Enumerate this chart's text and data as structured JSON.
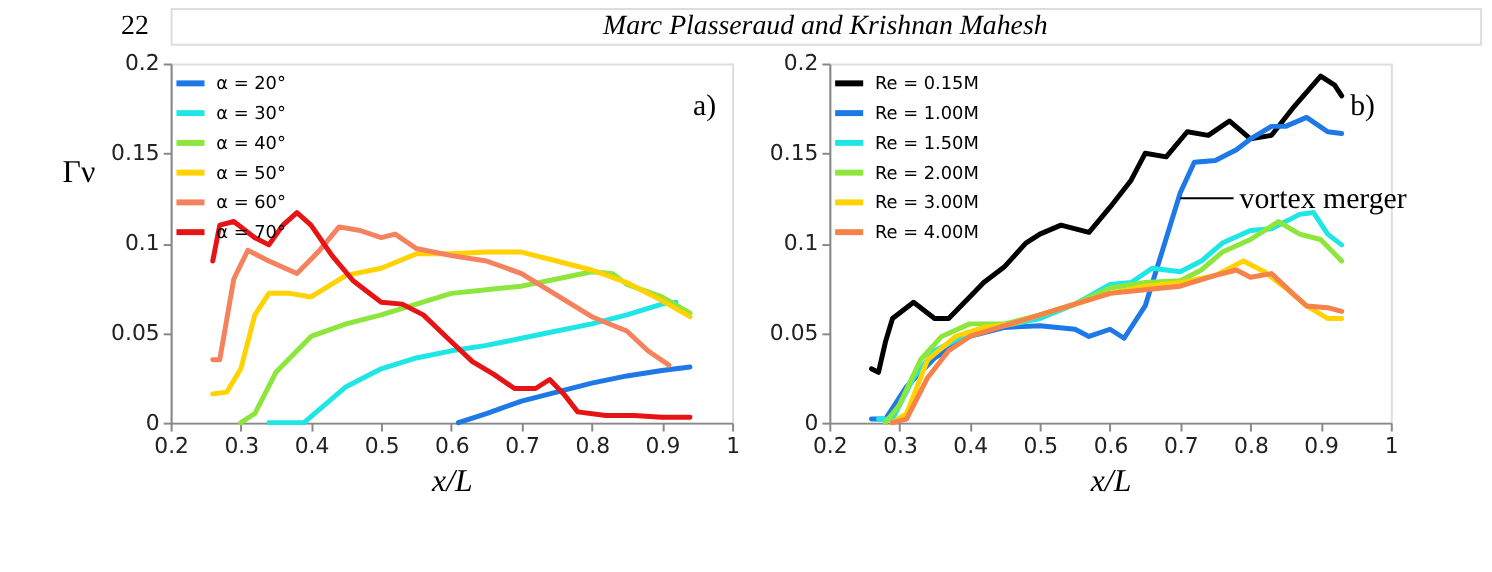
{
  "chart_data": [
    {
      "type": "line",
      "xlabel": "x/L",
      "ylabel": "Γν",
      "xlim": [
        0.2,
        1
      ],
      "ylim": [
        0,
        0.2
      ],
      "xticks": [
        0.2,
        0.3,
        0.4,
        0.5,
        0.6,
        0.7,
        0.8,
        0.9,
        1
      ],
      "yticks": [
        0,
        0.05,
        0.1,
        0.15,
        0.2
      ],
      "grid": false,
      "legend": "top left",
      "marker": "none",
      "line_style": "solid",
      "annotations": [
        "22",
        "Marc Plasseraud and Krishnan Mahesh",
        "a)"
      ],
      "series": [
        {
          "name": "α = 20°",
          "color": "#1e78e6",
          "x": [
            0.61,
            0.65,
            0.7,
            0.75,
            0.8,
            0.85,
            0.9,
            0.94
          ],
          "values": [
            0,
            0.005,
            0.012,
            0.017,
            0.022,
            0.026,
            0.029,
            0.031
          ]
        },
        {
          "name": "α = 30°",
          "color": "#1ee6e6",
          "x": [
            0.34,
            0.39,
            0.42,
            0.45,
            0.5,
            0.55,
            0.6,
            0.65,
            0.7,
            0.75,
            0.8,
            0.85,
            0.9,
            0.92
          ],
          "values": [
            0,
            0,
            0.01,
            0.02,
            0.03,
            0.036,
            0.04,
            0.043,
            0.047,
            0.051,
            0.055,
            0.06,
            0.066,
            0.067
          ]
        },
        {
          "name": "α = 40°",
          "color": "#8ce63c",
          "x": [
            0.3,
            0.32,
            0.35,
            0.4,
            0.45,
            0.5,
            0.55,
            0.6,
            0.65,
            0.7,
            0.75,
            0.8,
            0.83,
            0.85,
            0.9,
            0.94
          ],
          "values": [
            0,
            0.005,
            0.028,
            0.048,
            0.055,
            0.06,
            0.066,
            0.072,
            0.074,
            0.076,
            0.08,
            0.084,
            0.083,
            0.077,
            0.07,
            0.061
          ]
        },
        {
          "name": "α = 50°",
          "color": "#ffd200",
          "x": [
            0.26,
            0.28,
            0.3,
            0.32,
            0.34,
            0.37,
            0.4,
            0.45,
            0.5,
            0.55,
            0.6,
            0.65,
            0.7,
            0.75,
            0.8,
            0.85,
            0.9,
            0.94
          ],
          "values": [
            0.016,
            0.017,
            0.03,
            0.06,
            0.072,
            0.072,
            0.07,
            0.082,
            0.086,
            0.094,
            0.094,
            0.095,
            0.095,
            0.09,
            0.085,
            0.078,
            0.068,
            0.059
          ]
        },
        {
          "name": "α = 60°",
          "color": "#f5825f",
          "x": [
            0.26,
            0.27,
            0.29,
            0.31,
            0.34,
            0.38,
            0.41,
            0.44,
            0.47,
            0.5,
            0.52,
            0.55,
            0.6,
            0.65,
            0.7,
            0.75,
            0.8,
            0.85,
            0.88,
            0.91
          ],
          "values": [
            0.035,
            0.035,
            0.08,
            0.096,
            0.09,
            0.083,
            0.095,
            0.109,
            0.107,
            0.103,
            0.105,
            0.097,
            0.093,
            0.09,
            0.083,
            0.071,
            0.059,
            0.051,
            0.04,
            0.032
          ]
        },
        {
          "name": "α = 70°",
          "color": "#e61414",
          "x": [
            0.26,
            0.27,
            0.29,
            0.32,
            0.34,
            0.36,
            0.38,
            0.4,
            0.43,
            0.46,
            0.5,
            0.53,
            0.56,
            0.6,
            0.63,
            0.66,
            0.69,
            0.72,
            0.74,
            0.76,
            0.78,
            0.82,
            0.86,
            0.9,
            0.94
          ],
          "values": [
            0.09,
            0.11,
            0.112,
            0.103,
            0.099,
            0.11,
            0.117,
            0.11,
            0.093,
            0.079,
            0.067,
            0.066,
            0.06,
            0.045,
            0.034,
            0.027,
            0.019,
            0.019,
            0.024,
            0.016,
            0.006,
            0.004,
            0.004,
            0.003,
            0.003
          ]
        }
      ]
    },
    {
      "type": "line",
      "xlabel": "x/L",
      "xlim": [
        0.2,
        1
      ],
      "ylim": [
        0,
        0.2
      ],
      "xticks": [
        0.2,
        0.3,
        0.4,
        0.5,
        0.6,
        0.7,
        0.8,
        0.9,
        1
      ],
      "yticks": [
        0,
        0.05,
        0.1,
        0.15,
        0.2
      ],
      "grid": false,
      "legend": "top left",
      "marker": "none",
      "line_style": "solid",
      "annotations": [
        "b)",
        {
          "text": "vortex merger",
          "x": 0.7,
          "y": 0.125
        }
      ],
      "series": [
        {
          "name": "Re = 0.15M",
          "color": "#000000",
          "x": [
            0.26,
            0.27,
            0.28,
            0.29,
            0.32,
            0.35,
            0.37,
            0.4,
            0.42,
            0.45,
            0.48,
            0.5,
            0.53,
            0.57,
            0.6,
            0.63,
            0.65,
            0.68,
            0.71,
            0.74,
            0.77,
            0.8,
            0.83,
            0.86,
            0.9,
            0.92,
            0.93
          ],
          "values": [
            0.03,
            0.028,
            0.045,
            0.058,
            0.067,
            0.058,
            0.058,
            0.07,
            0.078,
            0.087,
            0.1,
            0.105,
            0.11,
            0.106,
            0.12,
            0.135,
            0.15,
            0.148,
            0.162,
            0.16,
            0.168,
            0.158,
            0.16,
            0.175,
            0.193,
            0.188,
            0.182
          ]
        },
        {
          "name": "Re = 1.00M",
          "color": "#1e78e6",
          "x": [
            0.26,
            0.28,
            0.31,
            0.35,
            0.4,
            0.45,
            0.5,
            0.55,
            0.57,
            0.6,
            0.62,
            0.65,
            0.67,
            0.7,
            0.72,
            0.75,
            0.78,
            0.8,
            0.83,
            0.85,
            0.88,
            0.91,
            0.93
          ],
          "values": [
            0.002,
            0.002,
            0.02,
            0.036,
            0.048,
            0.053,
            0.054,
            0.052,
            0.048,
            0.052,
            0.047,
            0.065,
            0.09,
            0.128,
            0.145,
            0.146,
            0.152,
            0.158,
            0.165,
            0.165,
            0.17,
            0.162,
            0.161
          ]
        },
        {
          "name": "Re = 1.50M",
          "color": "#1ee6e6",
          "x": [
            0.27,
            0.29,
            0.32,
            0.35,
            0.4,
            0.45,
            0.5,
            0.55,
            0.6,
            0.63,
            0.66,
            0.7,
            0.73,
            0.76,
            0.8,
            0.83,
            0.87,
            0.89,
            0.91,
            0.93
          ],
          "values": [
            0.002,
            0.002,
            0.025,
            0.04,
            0.05,
            0.054,
            0.058,
            0.066,
            0.077,
            0.078,
            0.086,
            0.084,
            0.09,
            0.1,
            0.107,
            0.108,
            0.116,
            0.117,
            0.105,
            0.099
          ]
        },
        {
          "name": "Re = 2.00M",
          "color": "#8ce63c",
          "x": [
            0.28,
            0.3,
            0.33,
            0.36,
            0.4,
            0.45,
            0.5,
            0.55,
            0.6,
            0.65,
            0.7,
            0.73,
            0.76,
            0.8,
            0.84,
            0.87,
            0.9,
            0.93
          ],
          "values": [
            0,
            0.01,
            0.035,
            0.048,
            0.055,
            0.055,
            0.06,
            0.066,
            0.075,
            0.078,
            0.079,
            0.085,
            0.095,
            0.102,
            0.112,
            0.105,
            0.102,
            0.09
          ]
        },
        {
          "name": "Re = 3.00M",
          "color": "#ffd200",
          "x": [
            0.29,
            0.31,
            0.34,
            0.38,
            0.42,
            0.46,
            0.5,
            0.55,
            0.6,
            0.65,
            0.7,
            0.75,
            0.79,
            0.82,
            0.85,
            0.88,
            0.91,
            0.93
          ],
          "values": [
            0,
            0.005,
            0.035,
            0.048,
            0.053,
            0.055,
            0.06,
            0.066,
            0.072,
            0.076,
            0.078,
            0.082,
            0.09,
            0.084,
            0.075,
            0.065,
            0.058,
            0.058
          ]
        },
        {
          "name": "Re = 4.00M",
          "color": "#f5824b",
          "x": [
            0.29,
            0.31,
            0.34,
            0.37,
            0.4,
            0.45,
            0.5,
            0.55,
            0.6,
            0.65,
            0.7,
            0.75,
            0.78,
            0.8,
            0.83,
            0.86,
            0.88,
            0.91,
            0.93
          ],
          "values": [
            0,
            0.002,
            0.025,
            0.04,
            0.048,
            0.054,
            0.06,
            0.066,
            0.072,
            0.074,
            0.076,
            0.082,
            0.085,
            0.081,
            0.083,
            0.072,
            0.065,
            0.064,
            0.062
          ]
        }
      ]
    }
  ]
}
